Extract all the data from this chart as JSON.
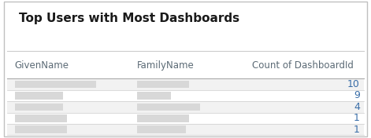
{
  "title": "Top Users with Most Dashboards",
  "title_fontsize": 11,
  "title_color": "#1a1a1a",
  "columns": [
    "GivenName",
    "FamilyName",
    "Count of DashboardId"
  ],
  "col_header_color": "#5b6a75",
  "col_header_fontsize": 8.5,
  "counts": [
    10,
    9,
    4,
    1,
    1
  ],
  "count_color": "#3a6ea8",
  "count_fontsize": 9,
  "row_colors": [
    "#f2f2f2",
    "#ffffff",
    "#f2f2f2",
    "#ffffff",
    "#f2f2f2"
  ],
  "blur_color": "#d8d8d8",
  "background_color": "#ffffff",
  "border_color": "#c0c0c0",
  "separator_color": "#cccccc",
  "header_separator_color": "#aaaaaa",
  "fig_width": 4.71,
  "fig_height": 1.76
}
